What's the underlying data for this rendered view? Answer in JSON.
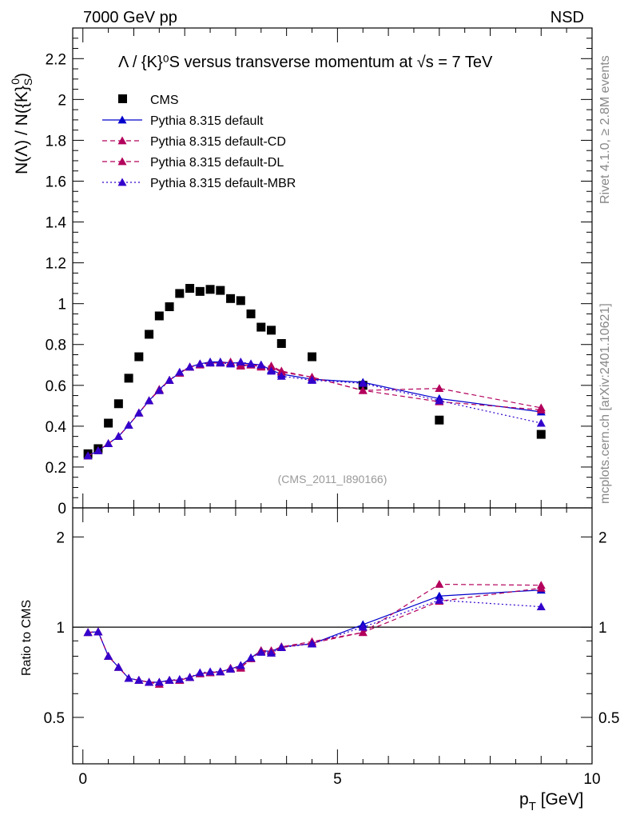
{
  "header": {
    "left": "7000 GeV pp",
    "right": "NSD"
  },
  "plot_title": "Λ / {K}⁰S versus transverse momentum at √s = 7 TeV",
  "side_texts": {
    "rivet": "Rivet 4.1.0, ≥ 2.8M events",
    "url": "mcplots.cern.ch [arXiv:2401.10621]"
  },
  "analysis_id": "(CMS_2011_I890166)",
  "colors": {
    "data": "#000000",
    "default": "#0000cc",
    "cd": "#b3005c",
    "dl": "#b3005c",
    "mbr": "#3300cc",
    "unity": "#000000"
  },
  "chart_data": [
    {
      "type": "scatter",
      "title": "Λ / {K}⁰S versus transverse momentum at √s = 7 TeV",
      "ylabel": "N(Λ)  /  N({K}⁰S)",
      "ylabel_main": "N(Λ)  /  N({K}",
      "ylabel_sup": "0",
      "ylabel_sub": "S",
      "ylabel_end": ")",
      "xlim": [
        -0.2,
        10.0
      ],
      "ylim": [
        0,
        2.35
      ],
      "yticks": [
        "0",
        "0.2",
        "0.4",
        "0.6",
        "0.8",
        "1",
        "1.2",
        "1.4",
        "1.6",
        "1.8",
        "2",
        "2.2"
      ],
      "legend_position": "top-left",
      "series": [
        {
          "name": "CMS",
          "style": "marker-square",
          "x": [
            0.1,
            0.3,
            0.5,
            0.7,
            0.9,
            1.1,
            1.3,
            1.5,
            1.7,
            1.9,
            2.1,
            2.3,
            2.5,
            2.7,
            2.9,
            3.1,
            3.3,
            3.5,
            3.7,
            3.9,
            4.5,
            5.5,
            7.0,
            9.0
          ],
          "y": [
            0.265,
            0.29,
            0.415,
            0.51,
            0.635,
            0.74,
            0.85,
            0.94,
            0.985,
            1.05,
            1.075,
            1.06,
            1.07,
            1.065,
            1.025,
            1.015,
            0.95,
            0.885,
            0.87,
            0.805,
            0.74,
            0.6,
            0.43,
            0.36
          ]
        },
        {
          "name": "Pythia 8.315 default",
          "style": "solid",
          "x": [
            0.1,
            0.3,
            0.5,
            0.7,
            0.9,
            1.1,
            1.3,
            1.5,
            1.7,
            1.9,
            2.1,
            2.3,
            2.5,
            2.7,
            2.9,
            3.1,
            3.3,
            3.5,
            3.7,
            3.9,
            4.5,
            5.5,
            7.0,
            9.0
          ],
          "y": [
            0.255,
            0.28,
            0.315,
            0.35,
            0.405,
            0.465,
            0.525,
            0.58,
            0.625,
            0.66,
            0.69,
            0.705,
            0.715,
            0.715,
            0.71,
            0.71,
            0.705,
            0.7,
            0.675,
            0.655,
            0.63,
            0.615,
            0.535,
            0.47
          ]
        },
        {
          "name": "Pythia 8.315 default-CD",
          "style": "dashed",
          "x": [
            0.1,
            0.3,
            0.5,
            0.7,
            0.9,
            1.1,
            1.3,
            1.5,
            1.7,
            1.9,
            2.1,
            2.3,
            2.5,
            2.7,
            2.9,
            3.1,
            3.3,
            3.5,
            3.7,
            3.9,
            4.5,
            5.5,
            7.0,
            9.0
          ],
          "y": [
            0.255,
            0.28,
            0.315,
            0.35,
            0.405,
            0.465,
            0.525,
            0.58,
            0.625,
            0.66,
            0.69,
            0.705,
            0.71,
            0.71,
            0.71,
            0.695,
            0.7,
            0.695,
            0.695,
            0.67,
            0.64,
            0.575,
            0.585,
            0.49
          ]
        },
        {
          "name": "Pythia 8.315 default-DL",
          "style": "dashed",
          "x": [
            0.1,
            0.3,
            0.5,
            0.7,
            0.9,
            1.1,
            1.3,
            1.5,
            1.7,
            1.9,
            2.1,
            2.3,
            2.5,
            2.7,
            2.9,
            3.1,
            3.3,
            3.5,
            3.7,
            3.9,
            4.5,
            5.5,
            7.0,
            9.0
          ],
          "y": [
            0.255,
            0.28,
            0.315,
            0.35,
            0.405,
            0.465,
            0.525,
            0.575,
            0.625,
            0.66,
            0.69,
            0.7,
            0.71,
            0.71,
            0.715,
            0.7,
            0.7,
            0.69,
            0.69,
            0.665,
            0.64,
            0.575,
            0.52,
            0.48
          ]
        },
        {
          "name": "Pythia 8.315 default-MBR",
          "style": "dotted",
          "x": [
            0.1,
            0.3,
            0.5,
            0.7,
            0.9,
            1.1,
            1.3,
            1.5,
            1.7,
            1.9,
            2.1,
            2.3,
            2.5,
            2.7,
            2.9,
            3.1,
            3.3,
            3.5,
            3.7,
            3.9,
            4.5,
            5.5,
            7.0,
            9.0
          ],
          "y": [
            0.255,
            0.28,
            0.315,
            0.35,
            0.405,
            0.465,
            0.525,
            0.575,
            0.625,
            0.665,
            0.69,
            0.705,
            0.71,
            0.71,
            0.705,
            0.715,
            0.705,
            0.7,
            0.67,
            0.645,
            0.625,
            0.61,
            0.525,
            0.415
          ]
        }
      ]
    },
    {
      "type": "line",
      "title": "Ratio panel",
      "ylabel": "Ratio to CMS",
      "xlabel": "p",
      "xlabel_sub": "T",
      "xlabel_unit": " [GeV]",
      "xlim": [
        -0.2,
        10.0
      ],
      "ylim": [
        0.35,
        2.5
      ],
      "xticks": [
        "0",
        "5",
        "10"
      ],
      "yticks": [
        "0.5",
        "1",
        "2"
      ],
      "yticks_right": [
        "0.5",
        "1",
        "2"
      ],
      "reference_line": 1,
      "series": [
        {
          "name": "Pythia 8.315 default",
          "style": "solid",
          "x": [
            0.1,
            0.3,
            0.5,
            0.7,
            0.9,
            1.1,
            1.3,
            1.5,
            1.7,
            1.9,
            2.1,
            2.3,
            2.5,
            2.7,
            2.9,
            3.1,
            3.3,
            3.5,
            3.7,
            3.9,
            4.5,
            5.5,
            7.0,
            9.0
          ],
          "y": [
            0.96,
            0.965,
            0.8,
            0.735,
            0.675,
            0.665,
            0.655,
            0.655,
            0.665,
            0.665,
            0.68,
            0.7,
            0.705,
            0.71,
            0.725,
            0.745,
            0.79,
            0.835,
            0.83,
            0.86,
            0.88,
            1.02,
            1.27,
            1.33
          ]
        },
        {
          "name": "Pythia 8.315 default-CD",
          "style": "dashed",
          "x": [
            0.1,
            0.3,
            0.5,
            0.7,
            0.9,
            1.1,
            1.3,
            1.5,
            1.7,
            1.9,
            2.1,
            2.3,
            2.5,
            2.7,
            2.9,
            3.1,
            3.3,
            3.5,
            3.7,
            3.9,
            4.5,
            5.5,
            7.0,
            9.0
          ],
          "y": [
            0.96,
            0.965,
            0.8,
            0.735,
            0.675,
            0.665,
            0.655,
            0.655,
            0.665,
            0.665,
            0.68,
            0.7,
            0.705,
            0.71,
            0.725,
            0.73,
            0.785,
            0.835,
            0.835,
            0.86,
            0.895,
            0.96,
            1.39,
            1.38
          ]
        },
        {
          "name": "Pythia 8.315 default-DL",
          "style": "dashed",
          "x": [
            0.1,
            0.3,
            0.5,
            0.7,
            0.9,
            1.1,
            1.3,
            1.5,
            1.7,
            1.9,
            2.1,
            2.3,
            2.5,
            2.7,
            2.9,
            3.1,
            3.3,
            3.5,
            3.7,
            3.9,
            4.5,
            5.5,
            7.0,
            9.0
          ],
          "y": [
            0.96,
            0.965,
            0.8,
            0.735,
            0.675,
            0.665,
            0.655,
            0.645,
            0.665,
            0.665,
            0.68,
            0.7,
            0.705,
            0.71,
            0.73,
            0.735,
            0.785,
            0.83,
            0.82,
            0.855,
            0.885,
            0.96,
            1.22,
            1.35
          ]
        },
        {
          "name": "Pythia 8.315 default-MBR",
          "style": "dotted",
          "x": [
            0.1,
            0.3,
            0.5,
            0.7,
            0.9,
            1.1,
            1.3,
            1.5,
            1.7,
            1.9,
            2.1,
            2.3,
            2.5,
            2.7,
            2.9,
            3.1,
            3.3,
            3.5,
            3.7,
            3.9,
            4.5,
            5.5,
            7.0,
            9.0
          ],
          "y": [
            0.96,
            0.965,
            0.8,
            0.735,
            0.675,
            0.665,
            0.655,
            0.655,
            0.665,
            0.67,
            0.68,
            0.705,
            0.71,
            0.71,
            0.725,
            0.745,
            0.79,
            0.825,
            0.82,
            0.855,
            0.88,
            1.0,
            1.23,
            1.17
          ]
        }
      ]
    }
  ]
}
